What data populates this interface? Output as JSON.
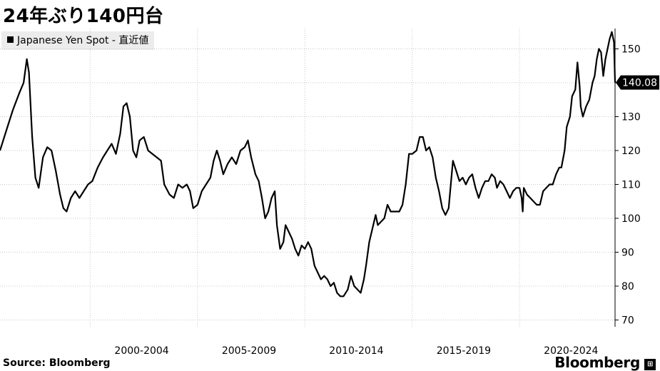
{
  "title": "24年ぶり140円台",
  "legend": {
    "label": "Japanese Yen Spot - 直近値"
  },
  "footer": {
    "source": "Source:  Bloomberg",
    "brand": "Bloomberg"
  },
  "chart_data": {
    "type": "line",
    "title": "24年ぶり140円台",
    "xlabel": "",
    "ylabel": "",
    "ylim": [
      68,
      156
    ],
    "yticks": [
      70,
      80,
      90,
      100,
      110,
      120,
      130,
      140,
      150
    ],
    "xlim": [
      1995.9,
      2024.55
    ],
    "x_tick_labels": [
      {
        "label": "2000-2004",
        "x": 2000
      },
      {
        "label": "2005-2009",
        "x": 2005
      },
      {
        "label": "2010-2014",
        "x": 2010
      },
      {
        "label": "2015-2019",
        "x": 2015
      },
      {
        "label": "2020-2024",
        "x": 2020
      }
    ],
    "last_value_label": "140.08",
    "grid": true,
    "y_axis_position": "right",
    "legend_position": "top-left",
    "series": [
      {
        "name": "Japanese Yen Spot - 直近値",
        "color": "#000000",
        "points": [
          [
            1995.9,
            120
          ],
          [
            1996.2,
            126
          ],
          [
            1996.5,
            132
          ],
          [
            1996.8,
            137
          ],
          [
            1997.0,
            140
          ],
          [
            1997.15,
            147
          ],
          [
            1997.25,
            143
          ],
          [
            1997.4,
            124
          ],
          [
            1997.55,
            112
          ],
          [
            1997.7,
            109
          ],
          [
            1997.9,
            118
          ],
          [
            1998.1,
            121
          ],
          [
            1998.3,
            120
          ],
          [
            1998.5,
            114
          ],
          [
            1998.7,
            107
          ],
          [
            1998.85,
            103
          ],
          [
            1999.0,
            102
          ],
          [
            1999.2,
            106
          ],
          [
            1999.4,
            108
          ],
          [
            1999.6,
            106
          ],
          [
            1999.8,
            108
          ],
          [
            2000.0,
            110
          ],
          [
            2000.2,
            111
          ],
          [
            2000.45,
            115
          ],
          [
            2000.7,
            118
          ],
          [
            2000.9,
            120
          ],
          [
            2001.1,
            122
          ],
          [
            2001.3,
            119
          ],
          [
            2001.5,
            125
          ],
          [
            2001.65,
            133
          ],
          [
            2001.8,
            134
          ],
          [
            2001.95,
            130
          ],
          [
            2002.1,
            120
          ],
          [
            2002.25,
            118
          ],
          [
            2002.4,
            123
          ],
          [
            2002.6,
            124
          ],
          [
            2002.8,
            120
          ],
          [
            2003.0,
            119
          ],
          [
            2003.2,
            118
          ],
          [
            2003.4,
            117
          ],
          [
            2003.55,
            110
          ],
          [
            2003.8,
            107
          ],
          [
            2004.0,
            106
          ],
          [
            2004.2,
            110
          ],
          [
            2004.4,
            109
          ],
          [
            2004.6,
            110
          ],
          [
            2004.75,
            108
          ],
          [
            2004.9,
            103
          ],
          [
            2005.1,
            104
          ],
          [
            2005.3,
            108
          ],
          [
            2005.5,
            110
          ],
          [
            2005.7,
            112
          ],
          [
            2005.85,
            117
          ],
          [
            2006.0,
            120
          ],
          [
            2006.15,
            117
          ],
          [
            2006.3,
            113
          ],
          [
            2006.5,
            116
          ],
          [
            2006.7,
            118
          ],
          [
            2006.9,
            116
          ],
          [
            2007.1,
            120
          ],
          [
            2007.3,
            121
          ],
          [
            2007.45,
            123
          ],
          [
            2007.6,
            118
          ],
          [
            2007.8,
            113
          ],
          [
            2007.95,
            111
          ],
          [
            2008.1,
            106
          ],
          [
            2008.25,
            100
          ],
          [
            2008.4,
            102
          ],
          [
            2008.55,
            106
          ],
          [
            2008.7,
            108
          ],
          [
            2008.8,
            98
          ],
          [
            2008.95,
            91
          ],
          [
            2009.1,
            93
          ],
          [
            2009.2,
            98
          ],
          [
            2009.35,
            96
          ],
          [
            2009.5,
            94
          ],
          [
            2009.65,
            91
          ],
          [
            2009.8,
            89
          ],
          [
            2009.95,
            92
          ],
          [
            2010.1,
            91
          ],
          [
            2010.25,
            93
          ],
          [
            2010.4,
            91
          ],
          [
            2010.55,
            86
          ],
          [
            2010.7,
            84
          ],
          [
            2010.85,
            82
          ],
          [
            2011.0,
            83
          ],
          [
            2011.15,
            82
          ],
          [
            2011.3,
            80
          ],
          [
            2011.45,
            81
          ],
          [
            2011.6,
            78
          ],
          [
            2011.75,
            77
          ],
          [
            2011.9,
            77
          ],
          [
            2012.1,
            79
          ],
          [
            2012.25,
            83
          ],
          [
            2012.4,
            80
          ],
          [
            2012.55,
            79
          ],
          [
            2012.7,
            78
          ],
          [
            2012.85,
            82
          ],
          [
            2012.95,
            86
          ],
          [
            2013.1,
            93
          ],
          [
            2013.25,
            97
          ],
          [
            2013.4,
            101
          ],
          [
            2013.5,
            98
          ],
          [
            2013.65,
            99
          ],
          [
            2013.8,
            100
          ],
          [
            2013.95,
            104
          ],
          [
            2014.1,
            102
          ],
          [
            2014.3,
            102
          ],
          [
            2014.5,
            102
          ],
          [
            2014.65,
            104
          ],
          [
            2014.8,
            110
          ],
          [
            2014.95,
            119
          ],
          [
            2015.1,
            119
          ],
          [
            2015.3,
            120
          ],
          [
            2015.45,
            124
          ],
          [
            2015.6,
            124
          ],
          [
            2015.75,
            120
          ],
          [
            2015.9,
            121
          ],
          [
            2016.05,
            118
          ],
          [
            2016.2,
            112
          ],
          [
            2016.35,
            108
          ],
          [
            2016.5,
            103
          ],
          [
            2016.65,
            101
          ],
          [
            2016.8,
            103
          ],
          [
            2016.9,
            110
          ],
          [
            2017.0,
            117
          ],
          [
            2017.15,
            114
          ],
          [
            2017.3,
            111
          ],
          [
            2017.45,
            112
          ],
          [
            2017.6,
            110
          ],
          [
            2017.75,
            112
          ],
          [
            2017.9,
            113
          ],
          [
            2018.05,
            109
          ],
          [
            2018.2,
            106
          ],
          [
            2018.35,
            109
          ],
          [
            2018.5,
            111
          ],
          [
            2018.65,
            111
          ],
          [
            2018.8,
            113
          ],
          [
            2018.95,
            112
          ],
          [
            2019.05,
            109
          ],
          [
            2019.2,
            111
          ],
          [
            2019.35,
            110
          ],
          [
            2019.5,
            108
          ],
          [
            2019.65,
            106
          ],
          [
            2019.8,
            108
          ],
          [
            2019.95,
            109
          ],
          [
            2020.1,
            109
          ],
          [
            2020.2,
            106
          ],
          [
            2020.25,
            102
          ],
          [
            2020.3,
            109
          ],
          [
            2020.45,
            107
          ],
          [
            2020.6,
            106
          ],
          [
            2020.75,
            105
          ],
          [
            2020.9,
            104
          ],
          [
            2021.05,
            104
          ],
          [
            2021.2,
            108
          ],
          [
            2021.35,
            109
          ],
          [
            2021.5,
            110
          ],
          [
            2021.65,
            110
          ],
          [
            2021.8,
            113
          ],
          [
            2021.95,
            115
          ],
          [
            2022.05,
            115
          ],
          [
            2022.2,
            120
          ],
          [
            2022.3,
            127
          ],
          [
            2022.45,
            130
          ],
          [
            2022.55,
            136
          ],
          [
            2022.7,
            138
          ],
          [
            2022.8,
            146
          ],
          [
            2022.9,
            139
          ],
          [
            2022.95,
            133
          ],
          [
            2023.05,
            130
          ],
          [
            2023.2,
            133
          ],
          [
            2023.35,
            135
          ],
          [
            2023.5,
            140
          ],
          [
            2023.6,
            142
          ],
          [
            2023.7,
            147
          ],
          [
            2023.8,
            150
          ],
          [
            2023.9,
            149
          ],
          [
            2024.0,
            142
          ],
          [
            2024.1,
            147
          ],
          [
            2024.2,
            150
          ],
          [
            2024.3,
            153
          ],
          [
            2024.4,
            155
          ],
          [
            2024.5,
            152
          ],
          [
            2024.55,
            140.08
          ]
        ]
      }
    ]
  }
}
